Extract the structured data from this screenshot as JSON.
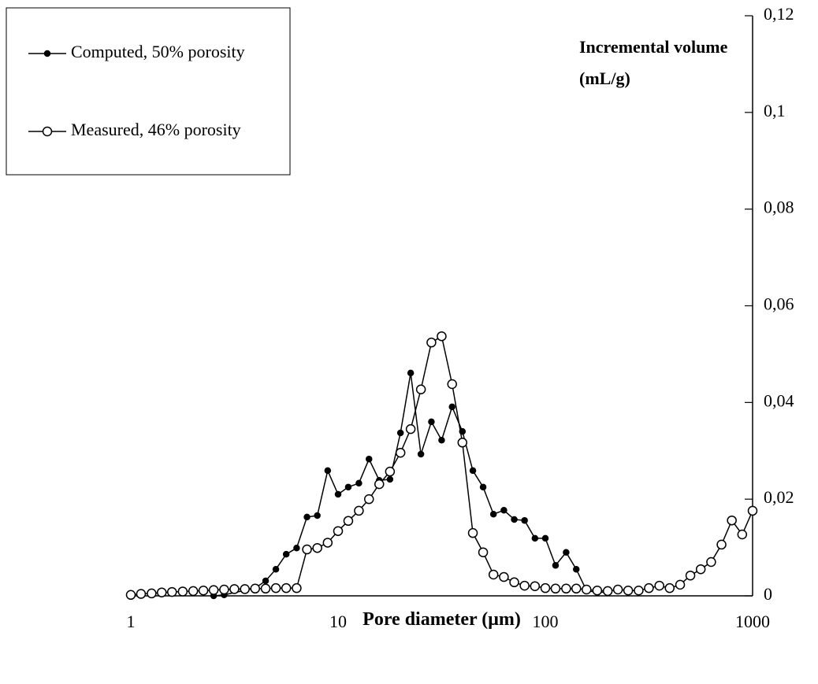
{
  "chart_data": {
    "type": "line",
    "x_label": "Pore diameter (μm)",
    "y_label": "Incremental volume (mL/g)",
    "xscale": "log",
    "xlim": [
      1,
      1000
    ],
    "xticks": [
      1,
      10,
      100,
      1000
    ],
    "ylim": [
      0,
      0.12
    ],
    "yticks": [
      0,
      {
        "value": 0.02,
        "label": "0,02"
      },
      {
        "value": 0.04,
        "label": "0,04"
      },
      {
        "value": 0.06,
        "label": "0,06"
      },
      {
        "value": 0.08,
        "label": "0,08"
      },
      {
        "value": 0.1,
        "label": "0,1"
      },
      {
        "value": 0.12,
        "label": "0,12"
      }
    ],
    "y_axis_side": "right",
    "grid": false,
    "legend": "top-left",
    "series": [
      {
        "name": "Computed, 50% porosity",
        "color": "#000000",
        "marker": "filled",
        "x": [
          2.51,
          2.82,
          3.98,
          4.47,
          5.01,
          5.62,
          6.31,
          7.08,
          7.94,
          8.91,
          10,
          11.2,
          12.6,
          14.1,
          15.8,
          17.8,
          20,
          22.4,
          25.1,
          28.2,
          31.6,
          35.5,
          39.8,
          44.7,
          50.1,
          56.2,
          63.1,
          70.8,
          79.4,
          89.1,
          100,
          112,
          126,
          141,
          158,
          178,
          200
        ],
        "values": [
          0,
          0.0002,
          0.0016,
          0.0031,
          0.0055,
          0.0086,
          0.0099,
          0.0163,
          0.0166,
          0.0259,
          0.021,
          0.0225,
          0.0233,
          0.0283,
          0.0239,
          0.0241,
          0.0337,
          0.0461,
          0.0293,
          0.036,
          0.0322,
          0.0391,
          0.034,
          0.0259,
          0.0225,
          0.0169,
          0.0177,
          0.0158,
          0.0156,
          0.0119,
          0.0119,
          0.0063,
          0.009,
          0.0055,
          0.0011,
          0.0007,
          0.0008
        ]
      },
      {
        "name": "Measured, 46% porosity",
        "color": "#000000",
        "marker": "open",
        "x": [
          1,
          1.12,
          1.26,
          1.41,
          1.58,
          1.78,
          2,
          2.24,
          2.51,
          2.82,
          3.16,
          3.55,
          3.98,
          4.47,
          5.01,
          5.62,
          6.31,
          7.08,
          7.94,
          8.91,
          10,
          11.2,
          12.6,
          14.1,
          15.8,
          17.8,
          20,
          22.4,
          25.1,
          28.2,
          31.6,
          35.5,
          39.8,
          44.7,
          50.1,
          56.2,
          63.1,
          70.8,
          79.4,
          89.1,
          100,
          112,
          126,
          141,
          158,
          178,
          200,
          224,
          251,
          282,
          316,
          355,
          398,
          447,
          501,
          562,
          631,
          708,
          794,
          891,
          1000
        ],
        "values": [
          0.0002,
          0.0004,
          0.0005,
          0.0007,
          0.0008,
          0.0009,
          0.001,
          0.0011,
          0.0012,
          0.0013,
          0.0014,
          0.0014,
          0.0015,
          0.0015,
          0.0016,
          0.0016,
          0.0016,
          0.0096,
          0.0099,
          0.011,
          0.0134,
          0.0155,
          0.0176,
          0.02,
          0.0231,
          0.0257,
          0.0296,
          0.0345,
          0.0427,
          0.0524,
          0.0537,
          0.0438,
          0.0317,
          0.013,
          0.009,
          0.0044,
          0.0039,
          0.0028,
          0.0021,
          0.002,
          0.0016,
          0.0015,
          0.0015,
          0.0015,
          0.0013,
          0.0011,
          0.001,
          0.0013,
          0.0011,
          0.0011,
          0.0016,
          0.0021,
          0.0016,
          0.0023,
          0.0042,
          0.0055,
          0.007,
          0.0106,
          0.0156,
          0.0127,
          0.0176
        ]
      }
    ]
  }
}
